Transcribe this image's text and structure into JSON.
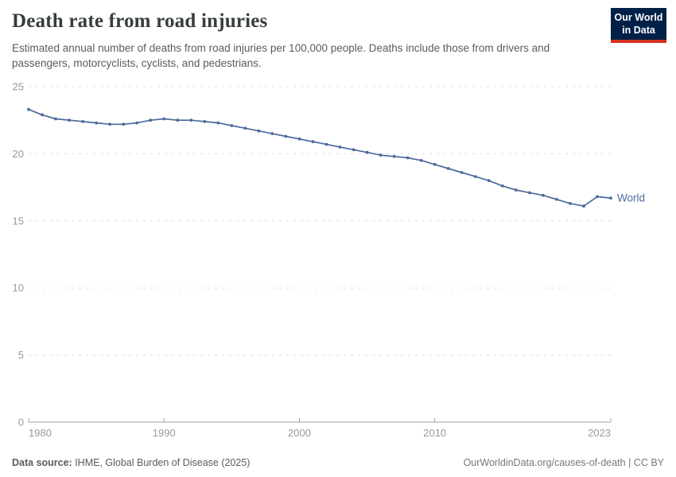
{
  "header": {
    "title": "Death rate from road injuries",
    "subtitle": "Estimated annual number of deaths from road injuries per 100,000 people. Deaths include those from drivers and passengers, motorcyclists, cyclists, and pedestrians.",
    "logo": {
      "line1": "Our World",
      "line2": "in Data"
    }
  },
  "footer": {
    "source_label": "Data source:",
    "source_text": " IHME, Global Burden of Disease (2025)",
    "credit": "OurWorldinData.org/causes-of-death | CC BY"
  },
  "colors": {
    "series": "#4c6a9c",
    "logo_bg": "#002147",
    "logo_red": "#d4311e",
    "grid": "#dddddd",
    "axis": "#a1a1a1",
    "tick_text": "#999999",
    "title_text": "#373d3f",
    "subtitle_text": "#5b5b5b"
  },
  "chart_data": {
    "type": "line",
    "title": "Death rate from road injuries",
    "xlabel": "",
    "ylabel": "Deaths from road injuries per 100,000 people",
    "xlim": [
      1980,
      2023
    ],
    "ylim": [
      0,
      25
    ],
    "y_ticks": [
      0,
      5,
      10,
      15,
      20,
      25
    ],
    "x_ticks": [
      1980,
      1990,
      2000,
      2010,
      2023
    ],
    "grid": "horizontal-dashed",
    "legend_position": "end-of-line",
    "series": [
      {
        "name": "World",
        "x": [
          1980,
          1981,
          1982,
          1983,
          1984,
          1985,
          1986,
          1987,
          1988,
          1989,
          1990,
          1991,
          1992,
          1993,
          1994,
          1995,
          1996,
          1997,
          1998,
          1999,
          2000,
          2001,
          2002,
          2003,
          2004,
          2005,
          2006,
          2007,
          2008,
          2009,
          2010,
          2011,
          2012,
          2013,
          2014,
          2015,
          2016,
          2017,
          2018,
          2019,
          2020,
          2021,
          2022,
          2023
        ],
        "values": [
          23.3,
          22.9,
          22.6,
          22.5,
          22.4,
          22.3,
          22.2,
          22.2,
          22.3,
          22.5,
          22.6,
          22.5,
          22.5,
          22.4,
          22.3,
          22.1,
          21.9,
          21.7,
          21.5,
          21.3,
          21.1,
          20.9,
          20.7,
          20.5,
          20.3,
          20.1,
          19.9,
          19.8,
          19.7,
          19.5,
          19.2,
          18.9,
          18.6,
          18.3,
          18.0,
          17.6,
          17.3,
          17.1,
          16.9,
          16.6,
          16.3,
          16.1,
          16.8,
          16.7
        ]
      }
    ]
  }
}
